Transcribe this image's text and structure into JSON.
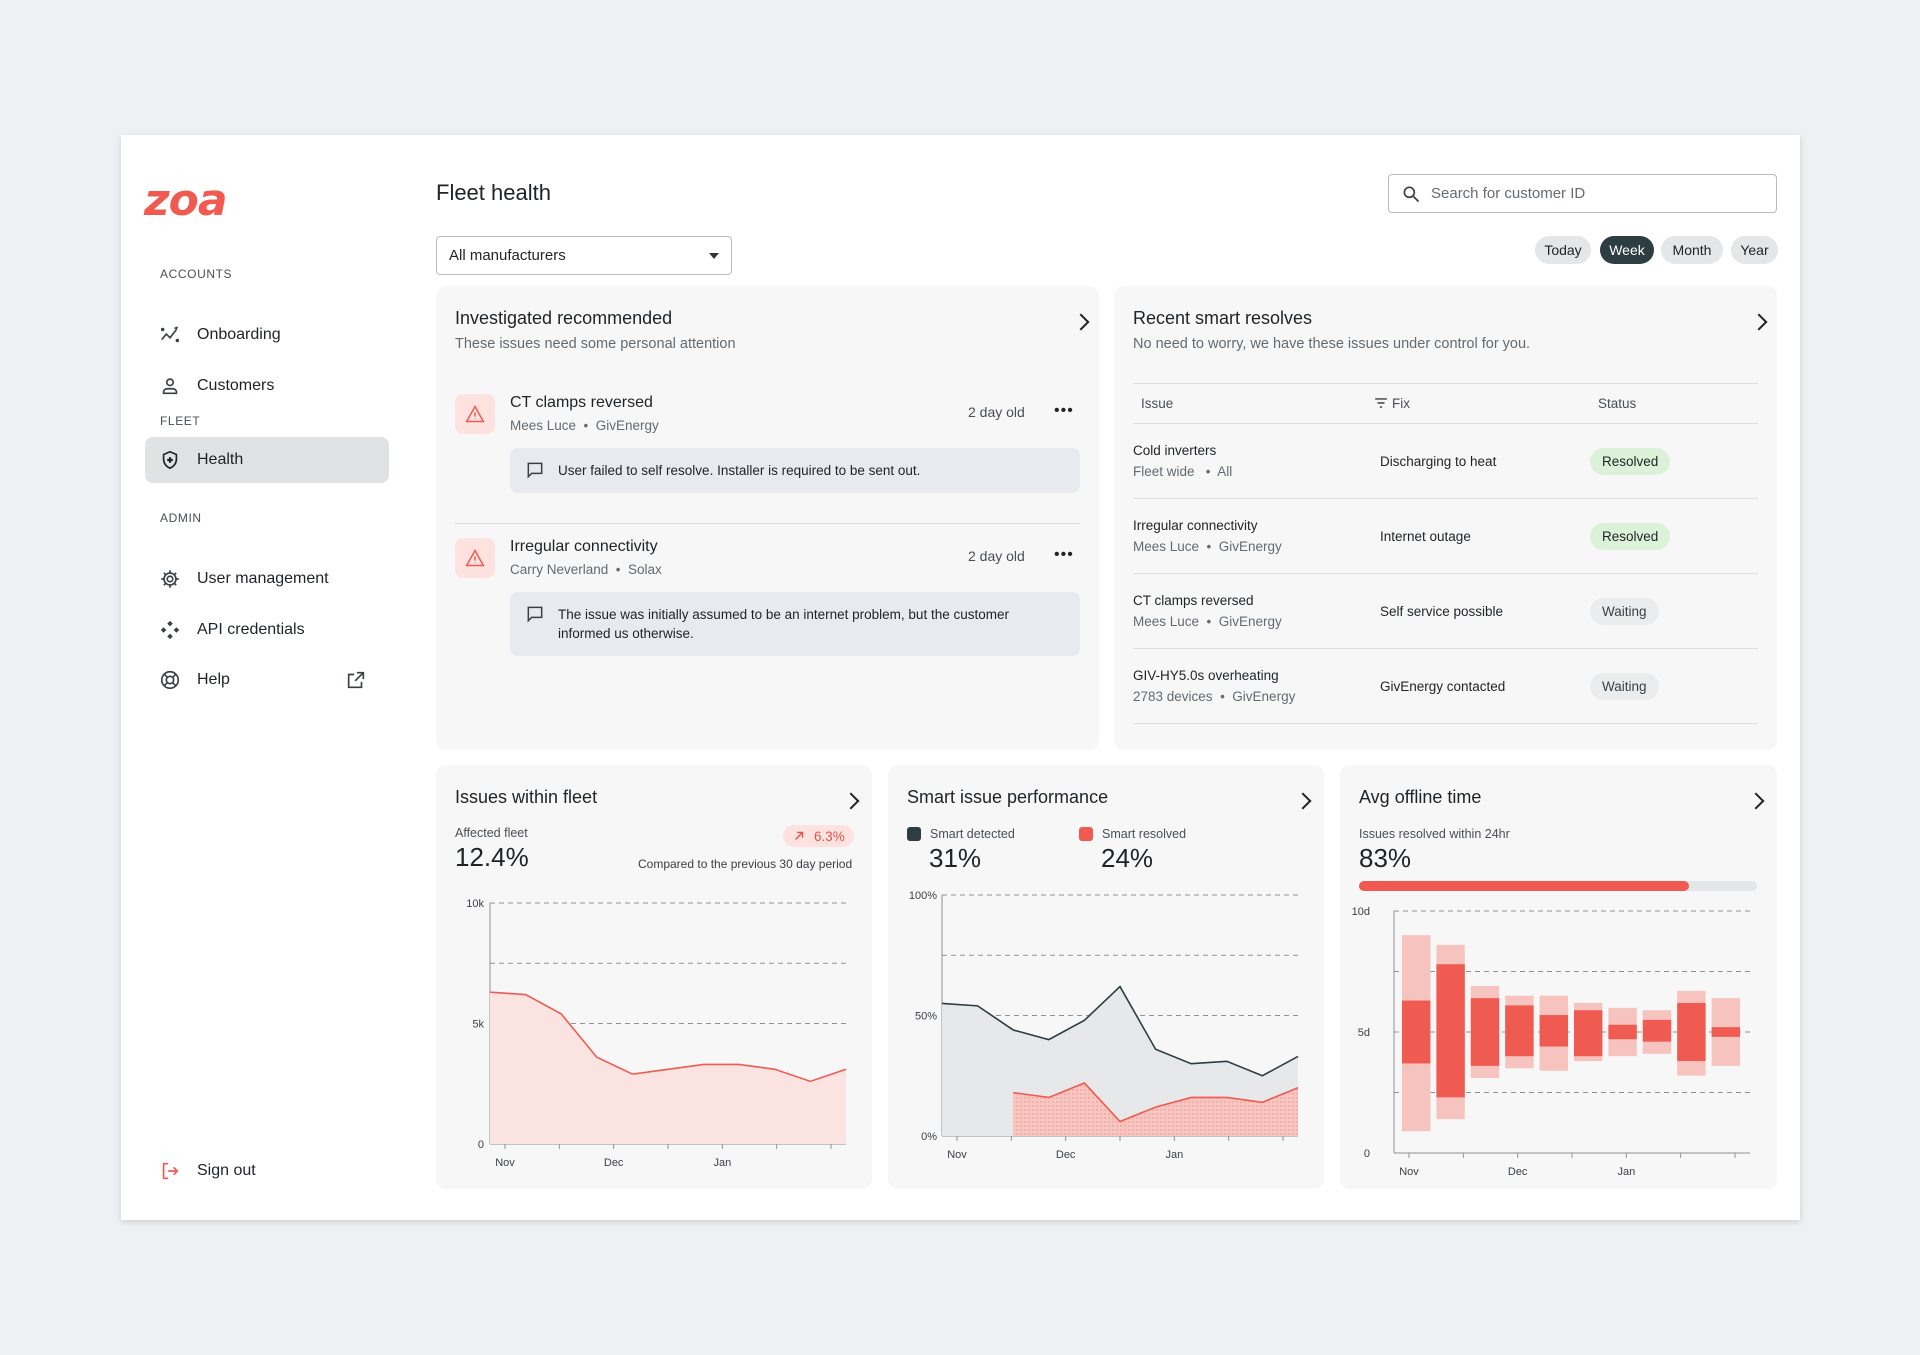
{
  "brand": {
    "logo_text": "zoa",
    "accent": "#f05a50"
  },
  "sidebar": {
    "sections": [
      "ACCOUNTS",
      "FLEET",
      "ADMIN"
    ],
    "items": [
      {
        "label": "Onboarding",
        "icon": "sparkline-icon"
      },
      {
        "label": "Customers",
        "icon": "person-icon"
      },
      {
        "label": "Health",
        "icon": "shield-icon",
        "active": true
      },
      {
        "label": "User management",
        "icon": "gear-icon"
      },
      {
        "label": "API credentials",
        "icon": "api-icon"
      },
      {
        "label": "Help",
        "icon": "lifebuoy-icon",
        "trailing_icon": "external-link-icon"
      }
    ],
    "sign_out": "Sign out"
  },
  "header": {
    "title": "Fleet health",
    "search_placeholder": "Search for customer ID",
    "manufacturer_select": "All manufacturers",
    "ranges": [
      "Today",
      "Week",
      "Month",
      "Year"
    ],
    "selected_range": "Week"
  },
  "investigated": {
    "title": "Investigated recommended",
    "subtitle": "These issues need some personal attention",
    "issues": [
      {
        "name": "CT clamps reversed",
        "customer": "Mees Luce",
        "brand": "GivEnergy",
        "age": "2 day old",
        "note": "User failed to self resolve. Installer is required to be sent out."
      },
      {
        "name": "Irregular connectivity",
        "customer": "Carry Neverland",
        "brand": "Solax",
        "age": "2 day old",
        "note": "The issue was initially assumed to be an internet problem, but the customer informed us otherwise."
      }
    ]
  },
  "smart_resolves": {
    "title": "Recent smart resolves",
    "subtitle": "No need to worry, we have these issues under control for you.",
    "columns": [
      "Issue",
      "Fix",
      "Status"
    ],
    "rows": [
      {
        "issue": "Cold inverters",
        "who": "Fleet wide",
        "brand": "All",
        "fix": "Discharging to heat",
        "status": "Resolved"
      },
      {
        "issue": "Irregular connectivity",
        "who": "Mees Luce",
        "brand": "GivEnergy",
        "fix": "Internet outage",
        "status": "Resolved"
      },
      {
        "issue": "CT clamps reversed",
        "who": "Mees Luce",
        "brand": "GivEnergy",
        "fix": "Self service possible",
        "status": "Waiting"
      },
      {
        "issue": "GIV-HY5.0s overheating",
        "who": "2783 devices",
        "brand": "GivEnergy",
        "fix": "GivEnergy contacted",
        "status": "Waiting"
      }
    ]
  },
  "issues_fleet": {
    "title": "Issues within fleet",
    "stat_label": "Affected fleet",
    "stat_value": "12.4%",
    "delta": "6.3%",
    "comparison": "Compared to the previous 30 day period"
  },
  "smart_perf": {
    "title": "Smart issue performance",
    "legend": [
      {
        "label": "Smart detected",
        "value": "31%",
        "color": "#2d3d42"
      },
      {
        "label": "Smart resolved",
        "value": "24%",
        "color": "#f05a50"
      }
    ]
  },
  "offline": {
    "title": "Avg offline time",
    "stat_label": "Issues resolved within 24hr",
    "stat_value": "83%",
    "progress": 0.83
  },
  "chart_data": [
    {
      "type": "area",
      "x_ticks": [
        "Nov",
        "Dec",
        "Jan"
      ],
      "y_ticks": [
        "10k",
        "5k",
        "0"
      ],
      "ylim": [
        0,
        10000
      ],
      "values": [
        6300,
        6200,
        5400,
        3600,
        2900,
        3100,
        3300,
        3300,
        3100,
        2600,
        3100
      ]
    },
    {
      "type": "area",
      "x_ticks": [
        "Nov",
        "Dec",
        "Jan"
      ],
      "y_ticks": [
        "100%",
        "50%",
        "0%"
      ],
      "ylim": [
        0,
        100
      ],
      "series": [
        {
          "name": "Smart detected",
          "color": "#2d3d42",
          "values": [
            55,
            54,
            44,
            40,
            48,
            62,
            36,
            30,
            31,
            25,
            33
          ]
        },
        {
          "name": "Smart resolved",
          "color": "#f05a50",
          "values": [
            null,
            null,
            18,
            16,
            22,
            6,
            12,
            16,
            16,
            14,
            20
          ]
        }
      ]
    },
    {
      "type": "bar",
      "x_ticks": [
        "Nov",
        "Dec",
        "Jan"
      ],
      "y_ticks": [
        "10d",
        "5d",
        "0"
      ],
      "ylim": [
        0,
        10
      ],
      "ranges": [
        {
          "lo": 0.9,
          "hi": 9.0,
          "q1": 3.7,
          "q3": 6.3
        },
        {
          "lo": 1.4,
          "hi": 8.6,
          "q1": 2.3,
          "q3": 7.8
        },
        {
          "lo": 3.1,
          "hi": 6.9,
          "q1": 3.6,
          "q3": 6.4
        },
        {
          "lo": 3.5,
          "hi": 6.5,
          "q1": 4.0,
          "q3": 6.1
        },
        {
          "lo": 3.4,
          "hi": 6.5,
          "q1": 4.4,
          "q3": 5.7
        },
        {
          "lo": 3.8,
          "hi": 6.2,
          "q1": 4.0,
          "q3": 5.9
        },
        {
          "lo": 4.0,
          "hi": 6.0,
          "q1": 4.7,
          "q3": 5.3
        },
        {
          "lo": 4.1,
          "hi": 5.9,
          "q1": 4.6,
          "q3": 5.5
        },
        {
          "lo": 3.2,
          "hi": 6.7,
          "q1": 3.8,
          "q3": 6.2
        },
        {
          "lo": 3.6,
          "hi": 6.4,
          "q1": 4.8,
          "q3": 5.2
        }
      ]
    }
  ]
}
